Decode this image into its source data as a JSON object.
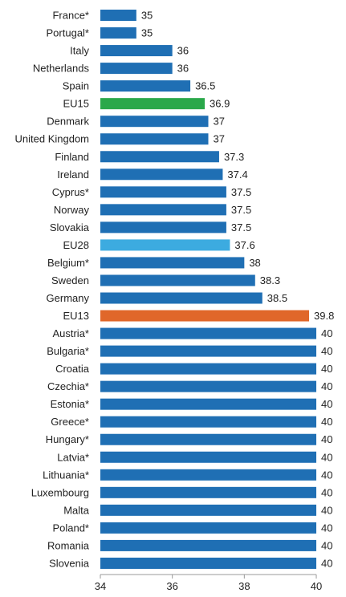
{
  "chart_data": {
    "type": "bar",
    "orientation": "horizontal",
    "categories": [
      "France*",
      "Portugal*",
      "Italy",
      "Netherlands",
      "Spain",
      "EU15",
      "Denmark",
      "United Kingdom",
      "Finland",
      "Ireland",
      "Cyprus*",
      "Norway",
      "Slovakia",
      "EU28",
      "Belgium*",
      "Sweden",
      "Germany",
      "EU13",
      "Austria*",
      "Bulgaria*",
      "Croatia",
      "Czechia*",
      "Estonia*",
      "Greece*",
      "Hungary*",
      "Latvia*",
      "Lithuania*",
      "Luxembourg",
      "Malta",
      "Poland*",
      "Romania",
      "Slovenia"
    ],
    "values": [
      35,
      35,
      36,
      36,
      36.5,
      36.9,
      37,
      37,
      37.3,
      37.4,
      37.5,
      37.5,
      37.5,
      37.6,
      38,
      38.3,
      38.5,
      39.8,
      40,
      40,
      40,
      40,
      40,
      40,
      40,
      40,
      40,
      40,
      40,
      40,
      40,
      40
    ],
    "value_labels": [
      "35",
      "35",
      "36",
      "36",
      "36.5",
      "36.9",
      "37",
      "37",
      "37.3",
      "37.4",
      "37.5",
      "37.5",
      "37.5",
      "37.6",
      "38",
      "38.3",
      "38.5",
      "39.8",
      "40",
      "40",
      "40",
      "40",
      "40",
      "40",
      "40",
      "40",
      "40",
      "40",
      "40",
      "40",
      "40",
      "40"
    ],
    "colors": {
      "default": "#1f6fb4",
      "EU15": "#2aa84a",
      "EU28": "#3cabe0",
      "EU13": "#e0672a"
    },
    "xlim": [
      34,
      40
    ],
    "xticks": [
      "34",
      "36",
      "38",
      "40"
    ],
    "title": "",
    "xlabel": "",
    "ylabel": "",
    "grid": false,
    "legend": "none"
  }
}
